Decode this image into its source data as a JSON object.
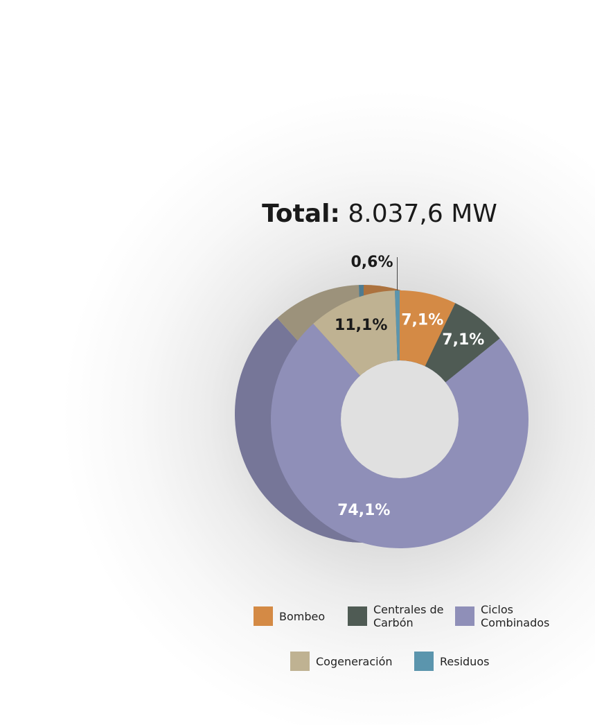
{
  "chart_data": {
    "type": "donut",
    "title_label": "Total:",
    "title_value": "8.037,6 MW",
    "series": [
      {
        "name": "Bombeo",
        "color": "#d48a45",
        "values": [
          7.1
        ],
        "value_labels": [
          "7,1%"
        ]
      },
      {
        "name": "Centrales de Carbón",
        "color": "#4f5b54",
        "values": [
          7.1
        ],
        "value_labels": [
          "7,1%"
        ]
      },
      {
        "name": "Ciclos Combinados",
        "color": "#8f8fb8",
        "values": [
          74.1
        ],
        "value_labels": [
          "74,1%"
        ]
      },
      {
        "name": "Cogeneración",
        "color": "#bfb292",
        "values": [
          11.1
        ],
        "value_labels": [
          "11,1%"
        ]
      },
      {
        "name": "Residuos",
        "color": "#5b95ad",
        "values": [
          0.6
        ],
        "value_labels": [
          "0,6%"
        ]
      }
    ],
    "legend": "bottom"
  }
}
